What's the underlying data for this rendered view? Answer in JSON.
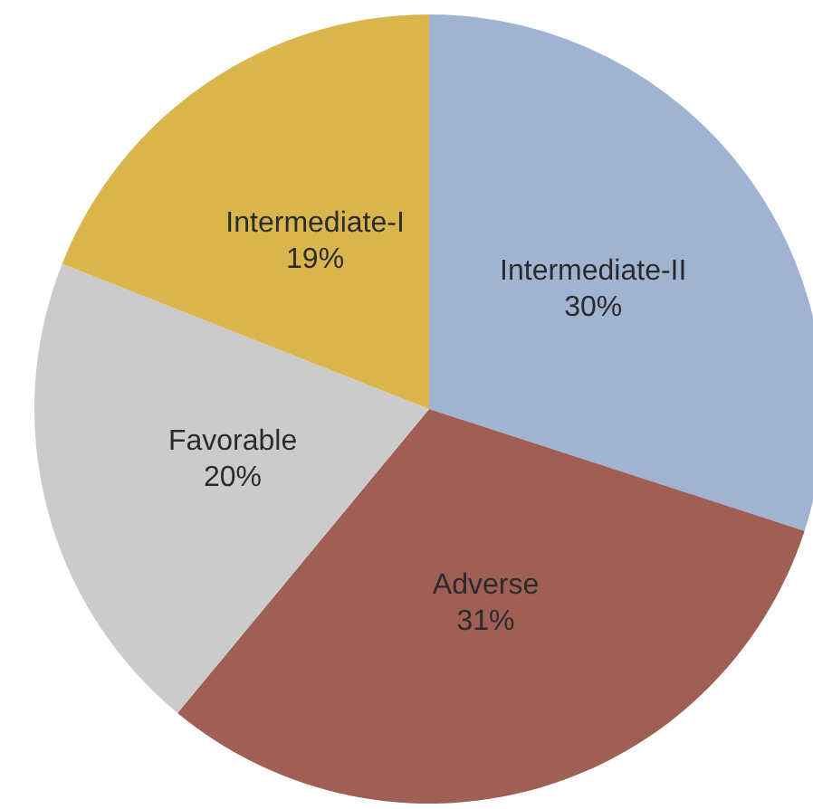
{
  "chart_data": {
    "type": "pie",
    "categories": [
      "Intermediate-II",
      "Adverse",
      "Favorable",
      "Intermediate-I"
    ],
    "values": [
      30,
      31,
      20,
      19
    ],
    "value_labels": [
      "30%",
      "31%",
      "20%",
      "19%"
    ],
    "colors": [
      "#a0b4d1",
      "#9f5f55",
      "#cbcbcb",
      "#d9b54b"
    ],
    "legend": false
  }
}
